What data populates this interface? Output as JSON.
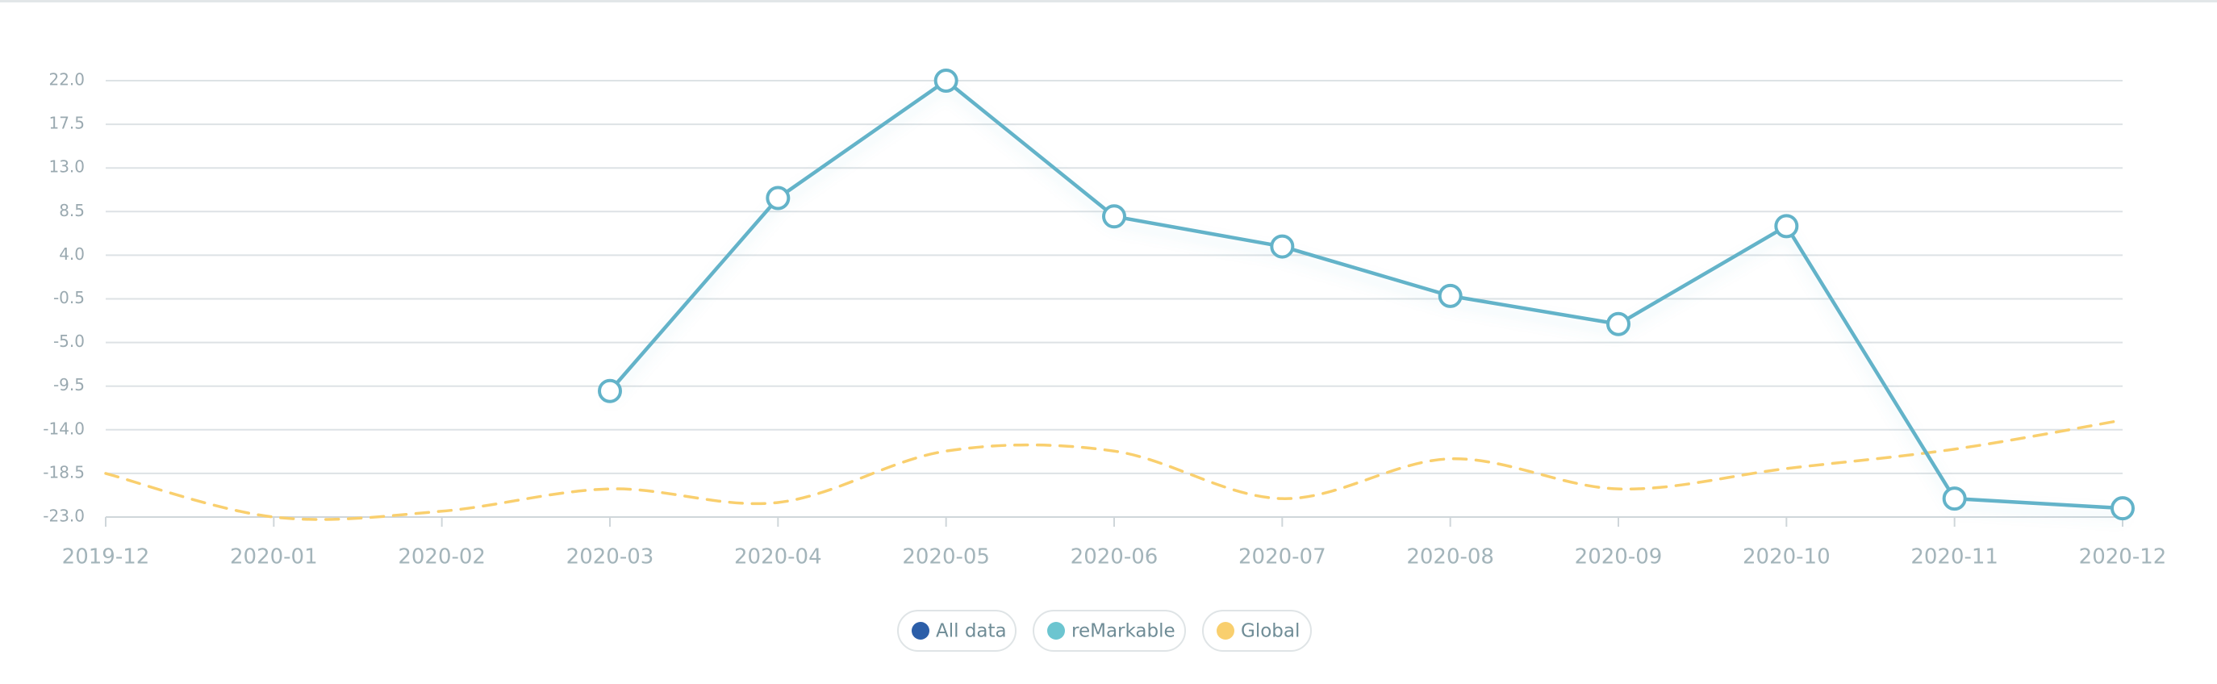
{
  "chart_data": {
    "type": "line",
    "categories": [
      "2019-12",
      "2020-01",
      "2020-02",
      "2020-03",
      "2020-04",
      "2020-05",
      "2020-06",
      "2020-07",
      "2020-08",
      "2020-09",
      "2020-10",
      "2020-11",
      "2020-12"
    ],
    "series": [
      {
        "name": "All data",
        "color": "#2c5ea8",
        "values": [
          null,
          null,
          null,
          null,
          null,
          null,
          null,
          null,
          null,
          null,
          null,
          null,
          null
        ]
      },
      {
        "name": "reMarkable",
        "color": "#6cc5d0",
        "line_color": "#63b3c9",
        "values": [
          null,
          null,
          null,
          -10.0,
          9.9,
          22.0,
          8.0,
          4.9,
          -0.2,
          -3.1,
          7.0,
          -21.1,
          -22.1
        ]
      },
      {
        "name": "Global",
        "color": "#f9cf6e",
        "dashed": true,
        "smooth": true,
        "values": [
          -18.5,
          -23.0,
          -22.4,
          -20.1,
          -21.5,
          -16.2,
          -16.2,
          -21.1,
          -17.0,
          -20.1,
          -18.0,
          -16.0,
          -13.0
        ]
      }
    ],
    "ylim": [
      -23,
      22
    ],
    "yticks": [
      {
        "value": -23,
        "label": "-23.0"
      },
      {
        "value": -18.5,
        "label": "-18.5"
      },
      {
        "value": -14,
        "label": "-14.0"
      },
      {
        "value": -9.5,
        "label": "-9.5"
      },
      {
        "value": -5,
        "label": "-5.0"
      },
      {
        "value": -0.5,
        "label": "-0.5"
      },
      {
        "value": 4,
        "label": "4.0"
      },
      {
        "value": 8.5,
        "label": "8.5"
      },
      {
        "value": 13,
        "label": "13.0"
      },
      {
        "value": 17.5,
        "label": "17.5"
      },
      {
        "value": 22,
        "label": "22.0"
      }
    ],
    "grid": true
  }
}
